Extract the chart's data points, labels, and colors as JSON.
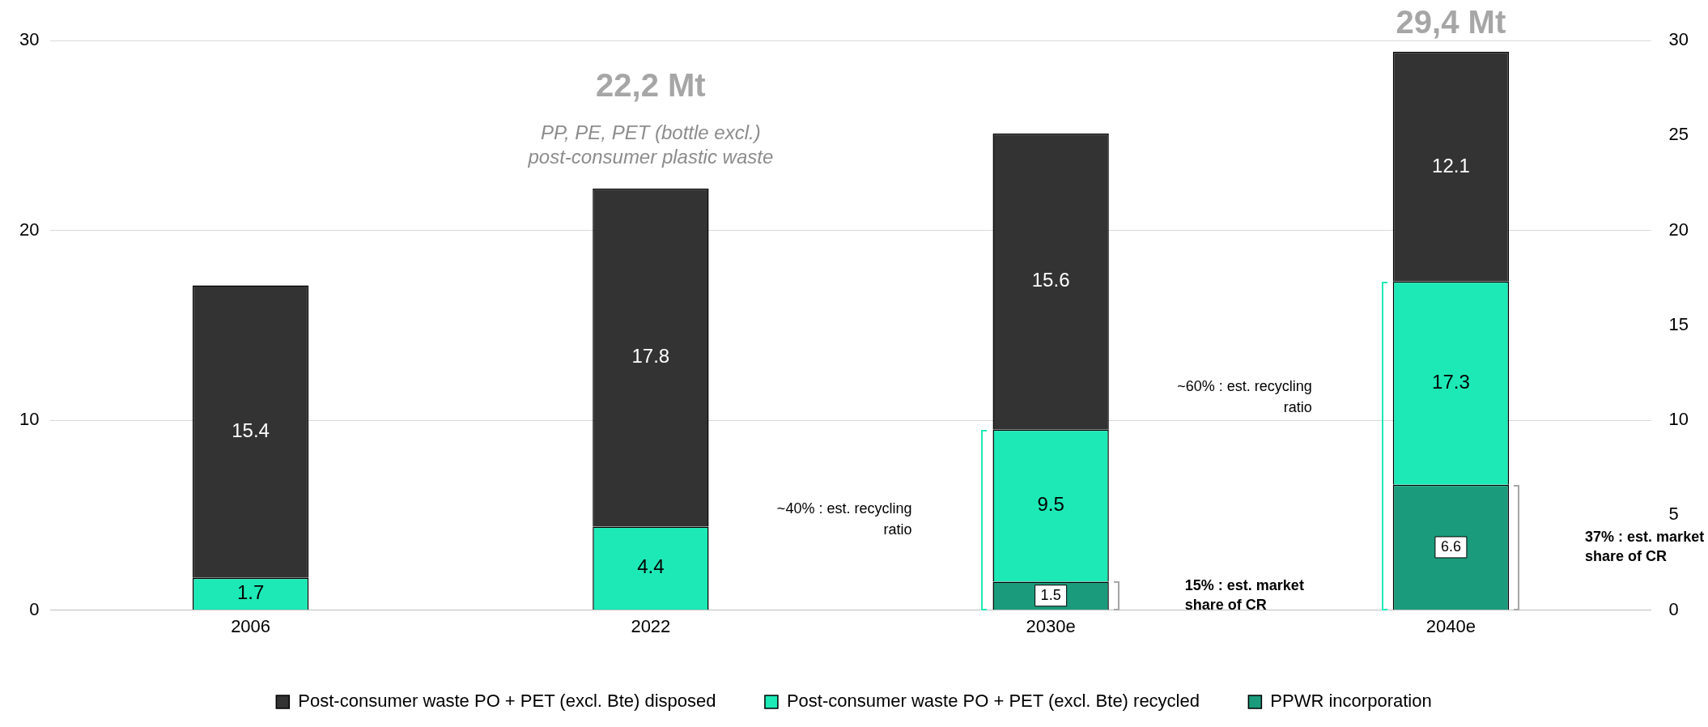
{
  "chart_data": {
    "type": "bar",
    "stacked": true,
    "categories": [
      "2006",
      "2022",
      "2030e",
      "2040e"
    ],
    "series": [
      {
        "name": "PPWR incorporation",
        "color": "#1a9c7c",
        "values": [
          null,
          null,
          1.5,
          6.6
        ],
        "value_labels": [
          null,
          null,
          "1.5",
          "6.6"
        ]
      },
      {
        "name": "Post-consumer waste PO + PET (excl. Bte) recycled",
        "color": "#1de9b6",
        "values": [
          1.7,
          4.4,
          8.0,
          10.7
        ],
        "value_labels": [
          "1.7",
          "4.4",
          null,
          null
        ]
      },
      {
        "name": "Post-consumer waste PO + PET (excl. Bte) disposed",
        "color": "#333333",
        "values": [
          15.4,
          17.8,
          15.6,
          12.1
        ],
        "value_labels": [
          "15.4",
          "17.8",
          "15.6",
          "12.1"
        ]
      }
    ],
    "ylim": [
      0,
      30
    ],
    "yticks": [
      0,
      10,
      20,
      30
    ],
    "y2lim": [
      0,
      30
    ],
    "y2ticks": [
      0,
      5,
      10,
      15,
      20,
      25,
      30
    ],
    "grid": "y",
    "legend": "bottom",
    "annotations": [
      {
        "text": "22,2 Mt",
        "x": "2022",
        "y": 22.2
      },
      {
        "text": "PP, PE, PET (bottle excl.) post-consumer plastic waste",
        "x": "2022",
        "y": 22.2
      },
      {
        "text": "29,4 Mt",
        "x": "2040e",
        "y": 29.4
      },
      "~40% : est. recycling ratio",
      "15% : est. market share of CR",
      "~60% : est. recycling ratio",
      "37% : est. market share of CR",
      "9.5",
      "17.3"
    ]
  }
}
